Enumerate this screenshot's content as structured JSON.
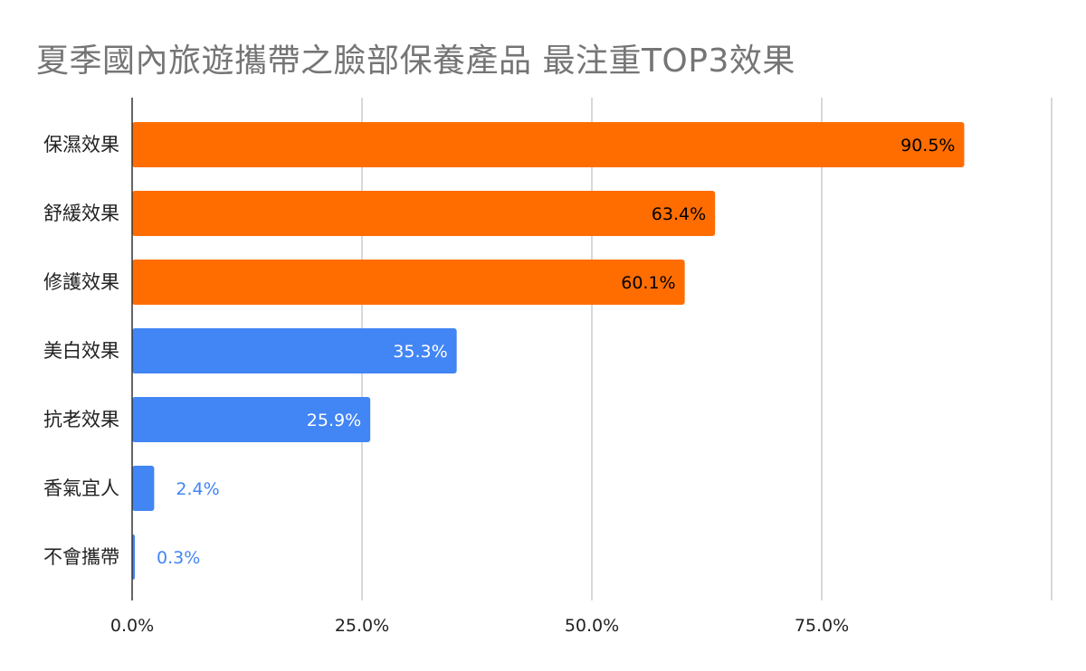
{
  "chart_data": {
    "type": "bar",
    "orientation": "horizontal",
    "title": "夏季國內旅遊攜帶之臉部保養產品 最注重TOP3效果",
    "categories": [
      "保濕效果",
      "舒緩效果",
      "修護效果",
      "美白效果",
      "抗老效果",
      "香氣宜人",
      "不會攜帶"
    ],
    "values": [
      90.5,
      63.4,
      60.1,
      35.3,
      25.9,
      2.4,
      0.3
    ],
    "value_labels": [
      "90.5%",
      "63.4%",
      "60.1%",
      "35.3%",
      "25.9%",
      "2.4%",
      "0.3%"
    ],
    "highlight_top": 3,
    "colors": {
      "highlight": "#ff6d01",
      "normal": "#4285f4",
      "label_on_highlight": "#000000",
      "label_on_normal": "#ffffff",
      "label_outside": "#4285f4",
      "gridline": "#cccccc",
      "axis": "#333333"
    },
    "x_ticks": [
      "0.0%",
      "25.0%",
      "50.0%",
      "75.0%"
    ],
    "tick_values": [
      0,
      25,
      50,
      75
    ],
    "xlim": [
      0,
      100
    ],
    "xlabel": "",
    "ylabel": "",
    "grid": true,
    "legend": "none"
  }
}
